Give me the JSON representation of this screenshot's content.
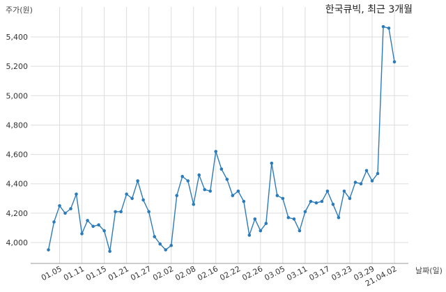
{
  "chart_data": {
    "type": "line",
    "title": "한국큐빅, 최근 3개월",
    "xlabel": "날짜(일)",
    "ylabel": "주가(원)",
    "ylim": [
      3880,
      5500
    ],
    "y_ticks": [
      4000,
      4200,
      4400,
      4600,
      4800,
      5000,
      5200,
      5400
    ],
    "y_tick_labels": [
      "4,000",
      "4,200",
      "4,400",
      "4,600",
      "4,800",
      "5,000",
      "5,200",
      "5,400"
    ],
    "x_tick_labels": [
      "01.05",
      "01.11",
      "01.15",
      "01.21",
      "01.27",
      "02.02",
      "02.08",
      "02.16",
      "02.22",
      "02.26",
      "03.05",
      "03.11",
      "03.17",
      "03.23",
      "03.29",
      "21.04.02"
    ],
    "x_tick_index": [
      2,
      6,
      10,
      14,
      18,
      22,
      26,
      30,
      34,
      38,
      42,
      46,
      50,
      54,
      58,
      62
    ],
    "grid": true,
    "legend": "none",
    "line_color": "#2b7bb9",
    "series": [
      {
        "values": [
          3950,
          4140,
          4250,
          4200,
          4230,
          4330,
          4060,
          4150,
          4110,
          4120,
          4080,
          3940,
          4210,
          4210,
          4330,
          4300,
          4420,
          4290,
          4210,
          4040,
          3990,
          3950,
          3980,
          4320,
          4450,
          4420,
          4260,
          4460,
          4360,
          4350,
          4620,
          4500,
          4430,
          4320,
          4350,
          4280,
          4050,
          4160,
          4080,
          4130,
          4540,
          4320,
          4300,
          4170,
          4160,
          4080,
          4210,
          4280,
          4270,
          4280,
          4350,
          4260,
          4170,
          4350,
          4300,
          4410,
          4400,
          4490,
          4420,
          4470,
          5470,
          5460,
          5230
        ]
      }
    ]
  }
}
